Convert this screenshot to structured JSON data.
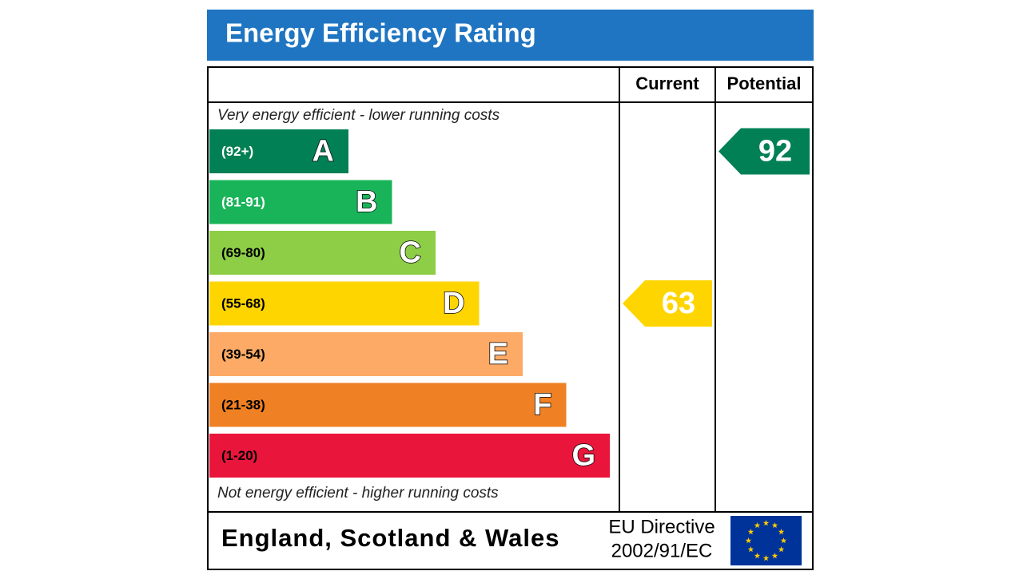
{
  "header": {
    "title": "Energy Efficiency Rating"
  },
  "columns": [
    "Current",
    "Potential"
  ],
  "top_note": "Very energy efficient - lower running costs",
  "bottom_note": "Not energy efficient - higher running costs",
  "bands": [
    {
      "range": "(92+)",
      "letter": "A",
      "color": "#008054"
    },
    {
      "range": "(81-91)",
      "letter": "B",
      "color": "#19b459"
    },
    {
      "range": "(69-80)",
      "letter": "C",
      "color": "#8dce46"
    },
    {
      "range": "(55-68)",
      "letter": "D",
      "color": "#ffd500"
    },
    {
      "range": "(39-54)",
      "letter": "E",
      "color": "#fcaa65"
    },
    {
      "range": "(21-38)",
      "letter": "F",
      "color": "#ef8023"
    },
    {
      "range": "(1-20)",
      "letter": "G",
      "color": "#e9153b"
    }
  ],
  "current": 63,
  "potential": 92,
  "footer": {
    "region": "England, Scotland & Wales",
    "directive": [
      "EU Directive",
      "2002/91/EC"
    ]
  }
}
